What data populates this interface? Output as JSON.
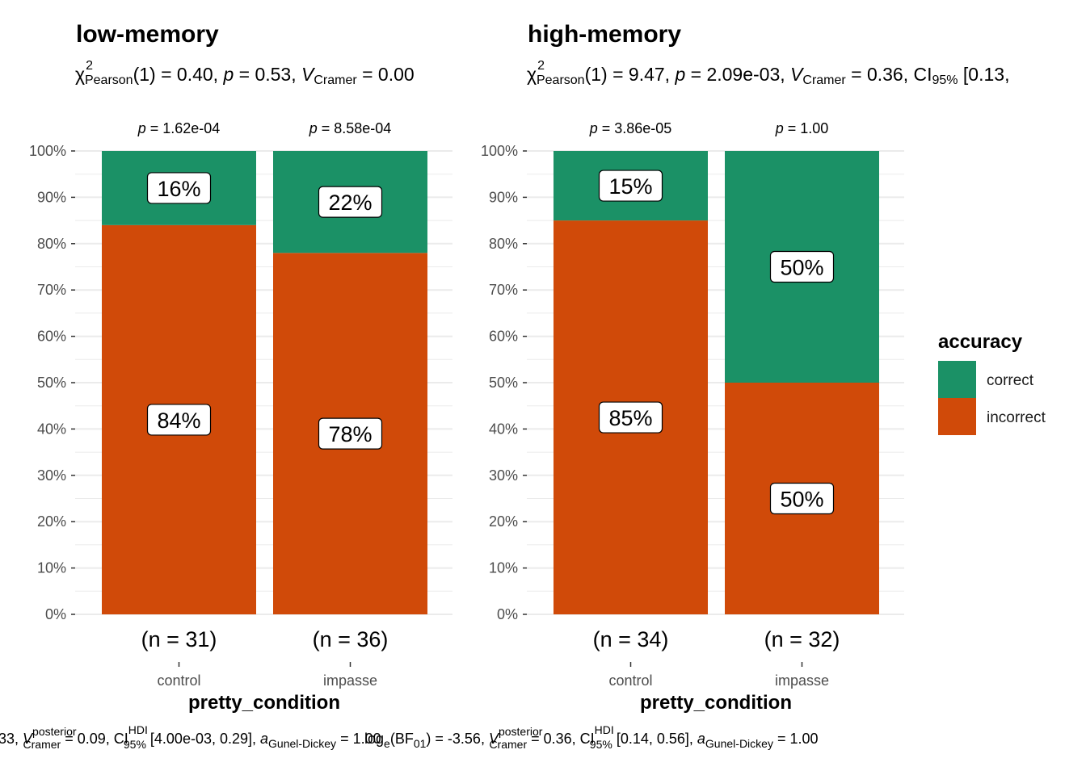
{
  "chart_data": [
    {
      "type": "bar",
      "stacked": true,
      "title": "low-memory",
      "subtitle": {
        "chi": "χ",
        "chi_sup": "2",
        "chi_sub": "Pearson",
        "rest_1": "(1) = 0.40, ",
        "p": "p",
        "rest_2": " = 0.53, ",
        "v": "V",
        "v_sub": "Cramer",
        "rest_3": " = 0.00"
      },
      "categories": [
        "control",
        "impasse"
      ],
      "category_pvalues": [
        "1.62e-04",
        "8.58e-04"
      ],
      "category_n": [
        "(n = 31)",
        "(n = 36)"
      ],
      "series": [
        {
          "name": "incorrect",
          "values": [
            84,
            78
          ],
          "labels": [
            "84%",
            "78%"
          ]
        },
        {
          "name": "correct",
          "values": [
            16,
            22
          ],
          "labels": [
            "16%",
            "22%"
          ]
        }
      ],
      "xlabel": "pretty_condition",
      "ylim": [
        0,
        100
      ],
      "yticks": [
        "0%",
        "10%",
        "20%",
        "30%",
        "40%",
        "50%",
        "60%",
        "70%",
        "80%",
        "90%",
        "100%"
      ],
      "caption": {
        "lead": "33, ",
        "v": "V",
        "v_sup": "posterior",
        "v_sub": "Cramer",
        "mid": " = 0.09, CI",
        "ci_sup": "HDI",
        "ci_sub": "95%",
        "interval": " [4.00e-03, 0.29], ",
        "a": "a",
        "a_sub": "Gunel-Dickey",
        "tail": " = 1.00"
      }
    },
    {
      "type": "bar",
      "stacked": true,
      "title": "high-memory",
      "subtitle": {
        "chi": "χ",
        "chi_sup": "2",
        "chi_sub": "Pearson",
        "rest_1": "(1) = 9.47, ",
        "p": "p",
        "rest_2": " = 2.09e-03, ",
        "v": "V",
        "v_sub": "Cramer",
        "rest_3": " = 0.36, CI",
        "ci_sub": "95%",
        "rest_4": " [0.13,"
      },
      "categories": [
        "control",
        "impasse"
      ],
      "category_pvalues": [
        "3.86e-05",
        "1.00"
      ],
      "category_n": [
        "(n = 34)",
        "(n = 32)"
      ],
      "series": [
        {
          "name": "incorrect",
          "values": [
            85,
            50
          ],
          "labels": [
            "85%",
            "50%"
          ]
        },
        {
          "name": "correct",
          "values": [
            15,
            50
          ],
          "labels": [
            "15%",
            "50%"
          ]
        }
      ],
      "xlabel": "pretty_condition",
      "ylim": [
        0,
        100
      ],
      "yticks": [
        "0%",
        "10%",
        "20%",
        "30%",
        "40%",
        "50%",
        "60%",
        "70%",
        "80%",
        "90%",
        "100%"
      ],
      "caption": {
        "lead": "log",
        "lead_sub": "e",
        "bf": "(BF",
        "bf_sub": "01",
        "bf_close": ") = -3.56, ",
        "v": "V",
        "v_sup": "posterior",
        "v_sub": "Cramer",
        "mid": " = 0.36, CI",
        "ci_sup": "HDI",
        "ci_sub": "95%",
        "interval": " [0.14, 0.56], ",
        "a": "a",
        "a_sub": "Gunel-Dickey",
        "tail": " = 1.00"
      }
    }
  ],
  "legend": {
    "title": "accuracy",
    "items": [
      {
        "label": "correct",
        "color": "#1B9166"
      },
      {
        "label": "incorrect",
        "color": "#D04A09"
      }
    ],
    "placement": "right"
  },
  "colors": {
    "correct": "#1B9166",
    "incorrect": "#D04A09",
    "grid": "#EBEBEB"
  },
  "p_prefix": "p",
  "p_infix": " = "
}
